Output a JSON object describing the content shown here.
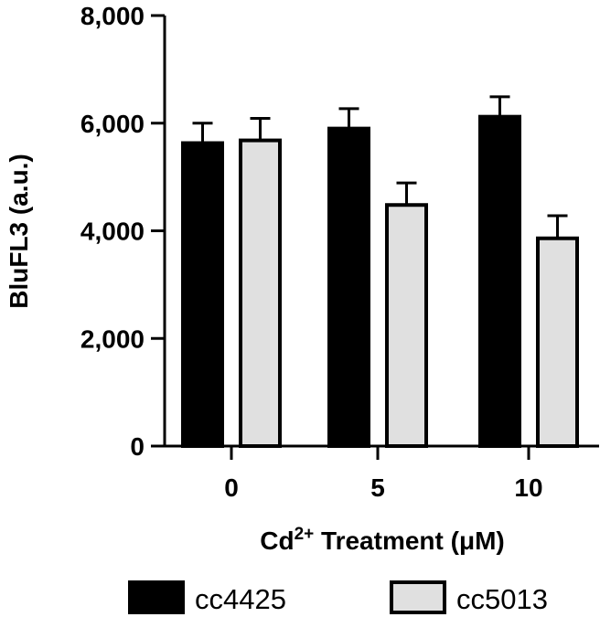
{
  "chart_data": {
    "type": "bar",
    "categories": [
      "0",
      "5",
      "10"
    ],
    "series": [
      {
        "name": "cc4425",
        "values": [
          5630,
          5900,
          6120
        ],
        "errors": [
          370,
          370,
          370
        ],
        "color": "#000000"
      },
      {
        "name": "cc5013",
        "values": [
          5680,
          4480,
          3860
        ],
        "errors": [
          410,
          410,
          420
        ],
        "color": "#e0e0e0"
      }
    ],
    "ylabel": "BluFL3 (a.u.)",
    "xlabel": {
      "prefix": "Cd",
      "superscript": "2+",
      "suffix": " Treatment (μM)"
    },
    "ylim": [
      0,
      8000
    ],
    "yticks": [
      "0",
      "2,000",
      "4,000",
      "6,000",
      "8,000"
    ],
    "ytick_values": [
      0,
      2000,
      4000,
      6000,
      8000
    ],
    "legend_position": "bottom",
    "grid": false
  }
}
